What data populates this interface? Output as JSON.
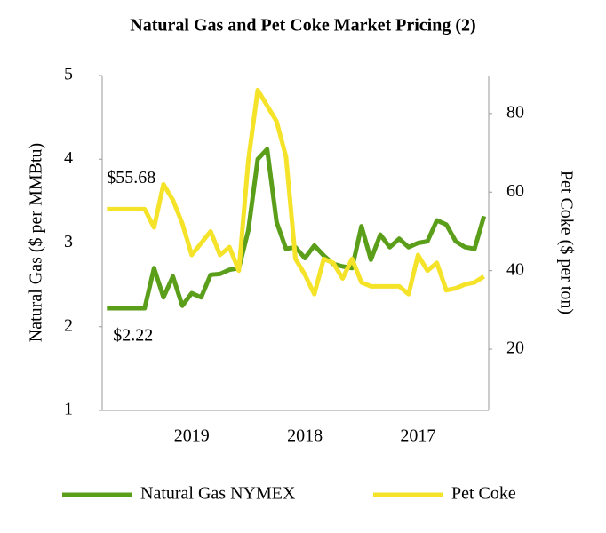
{
  "chart_data": {
    "type": "line",
    "title": "Natural Gas and Pet Coke Market Pricing (2)",
    "ylabel": "Natural Gas ($ per MMBtu)",
    "y2label": "Pet Coke ($ per ton)",
    "categories": [
      null,
      null,
      null,
      null,
      null,
      null,
      null,
      null,
      null,
      "2019",
      null,
      null,
      null,
      null,
      null,
      null,
      null,
      null,
      null,
      null,
      null,
      "2018",
      null,
      null,
      null,
      null,
      null,
      null,
      null,
      null,
      null,
      null,
      null,
      "2017",
      null,
      null,
      null,
      null,
      null,
      null,
      null
    ],
    "series": [
      {
        "name": "Natural Gas NYMEX",
        "color": "#5a9e1a",
        "axis": "y",
        "values": [
          2.22,
          2.22,
          2.22,
          2.22,
          2.22,
          2.7,
          2.35,
          2.6,
          2.25,
          2.4,
          2.35,
          2.62,
          2.63,
          2.68,
          2.7,
          3.15,
          4.0,
          4.12,
          3.25,
          2.93,
          2.95,
          2.82,
          2.97,
          2.85,
          2.75,
          2.72,
          2.7,
          3.2,
          2.8,
          3.1,
          2.95,
          3.05,
          2.95,
          3.0,
          3.02,
          3.27,
          3.22,
          3.02,
          2.95,
          2.93,
          3.32
        ]
      },
      {
        "name": "Pet Coke",
        "color": "#f5e32a",
        "axis": "y2",
        "values": [
          55.68,
          55.68,
          55.68,
          55.68,
          55.68,
          51,
          62,
          58,
          52,
          44,
          47,
          50,
          44,
          46,
          40,
          68,
          86,
          82,
          78,
          69,
          43,
          39,
          34,
          43,
          42,
          38,
          43,
          37,
          36,
          36,
          36,
          36,
          34,
          44,
          40,
          42,
          35,
          35.5,
          36.5,
          37,
          38.5
        ]
      }
    ],
    "annotations": [
      {
        "text": "$55.68",
        "series": 1,
        "index": 0
      },
      {
        "text": "$2.22",
        "series": 0,
        "index": 0
      }
    ],
    "ylim": [
      1,
      5
    ],
    "yticks": [
      1,
      2,
      3,
      4,
      5
    ],
    "y2lim": [
      4.4,
      89.7
    ],
    "y2ticks": [
      20,
      40,
      60,
      80
    ],
    "legend": "bottom"
  }
}
